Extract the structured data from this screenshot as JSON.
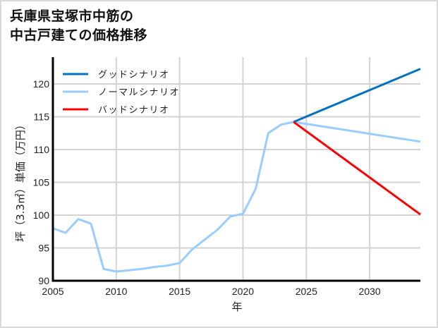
{
  "title_line1": "兵庫県宝塚市中筋の",
  "title_line2": "中古戸建ての価格推移",
  "chart_data": {
    "type": "line",
    "title": "兵庫県宝塚市中筋の中古戸建ての価格推移",
    "xlabel": "年",
    "ylabel": "坪（3.3㎡）単価（万円）",
    "xlim": [
      2005,
      2034
    ],
    "ylim": [
      90,
      124
    ],
    "xticks": [
      2005,
      2010,
      2015,
      2020,
      2025,
      2030
    ],
    "yticks": [
      90,
      95,
      100,
      105,
      110,
      115,
      120
    ],
    "grid": true,
    "legend_position": "upper left",
    "series": [
      {
        "name": "グッドシナリオ",
        "color": "#0070c0",
        "x": [
          2024,
          2034
        ],
        "values": [
          114.2,
          122.3
        ]
      },
      {
        "name": "ノーマルシナリオ",
        "color": "#99ccff",
        "x": [
          2005,
          2006,
          2007,
          2008,
          2009,
          2010,
          2011,
          2012,
          2013,
          2014,
          2015,
          2016,
          2017,
          2018,
          2019,
          2020,
          2021,
          2022,
          2023,
          2024,
          2034
        ],
        "values": [
          98.0,
          97.3,
          99.4,
          98.7,
          91.8,
          91.4,
          91.6,
          91.8,
          92.1,
          92.3,
          92.7,
          94.8,
          96.3,
          97.8,
          99.8,
          100.2,
          104.0,
          112.5,
          113.8,
          114.2,
          111.2
        ]
      },
      {
        "name": "バッドシナリオ",
        "color": "#ff0000",
        "x": [
          2024,
          2034
        ],
        "values": [
          114.2,
          100.1
        ]
      }
    ]
  }
}
